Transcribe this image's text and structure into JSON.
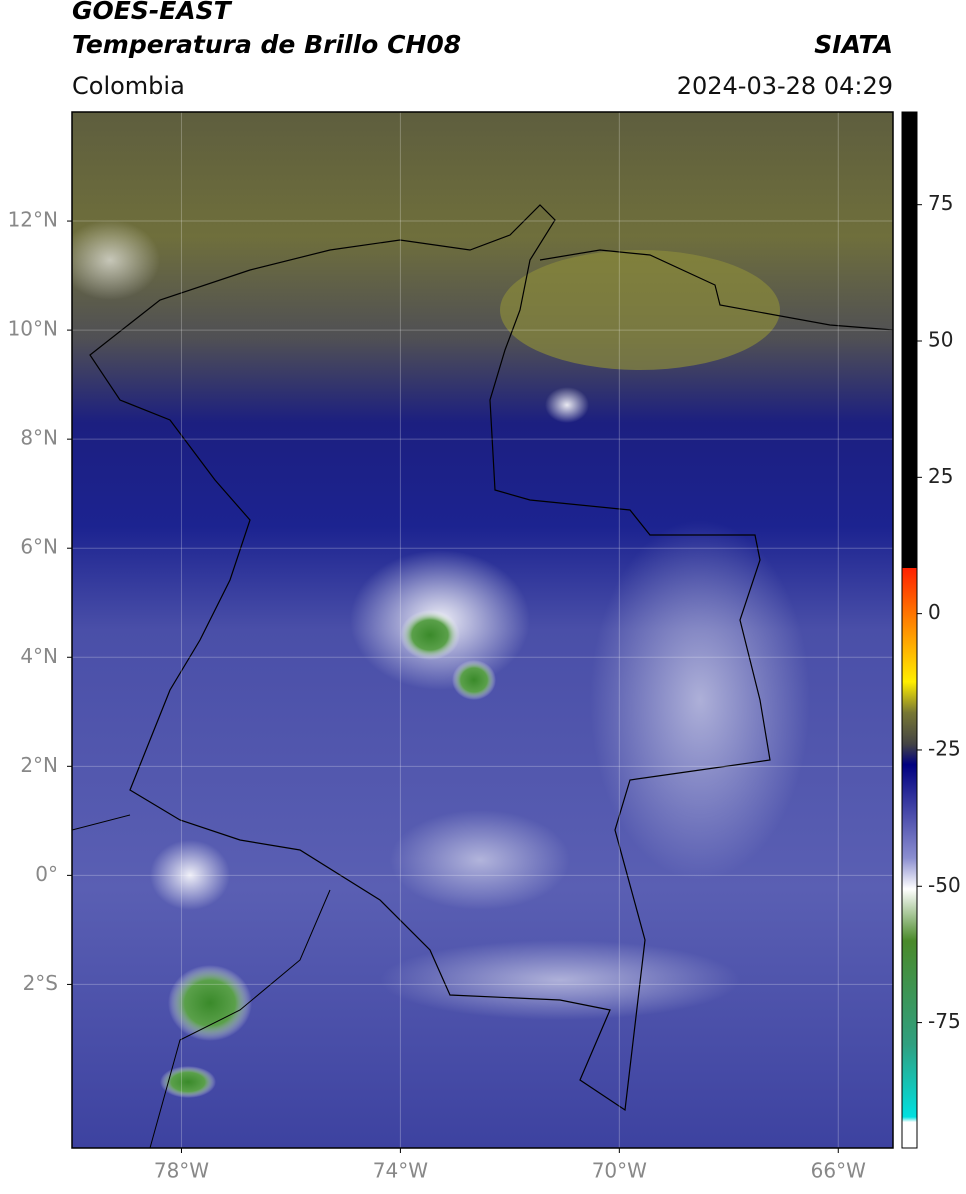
{
  "header": {
    "title": "GOES-EAST",
    "subtitle": "Temperatura de Brillo CH08",
    "source": "SIATA",
    "region": "Colombia",
    "datetime": "2024-03-28 04:29"
  },
  "map": {
    "lonlim": [
      -80,
      -65
    ],
    "latlim": [
      -5,
      14
    ],
    "lat_ticks": [
      {
        "value": 12,
        "label": "12°N"
      },
      {
        "value": 10,
        "label": "10°N"
      },
      {
        "value": 8,
        "label": "8°N"
      },
      {
        "value": 6,
        "label": "6°N"
      },
      {
        "value": 4,
        "label": "4°N"
      },
      {
        "value": 2,
        "label": "2°N"
      },
      {
        "value": 0,
        "label": "0°"
      },
      {
        "value": -2,
        "label": "2°S"
      }
    ],
    "lon_ticks": [
      {
        "value": -78,
        "label": "78°W"
      },
      {
        "value": -74,
        "label": "74°W"
      },
      {
        "value": -70,
        "label": "70°W"
      },
      {
        "value": -66,
        "label": "66°W"
      }
    ]
  },
  "colorbar": {
    "range": [
      -98,
      92
    ],
    "ticks": [
      75,
      50,
      25,
      0,
      -25,
      -50,
      -75
    ]
  }
}
